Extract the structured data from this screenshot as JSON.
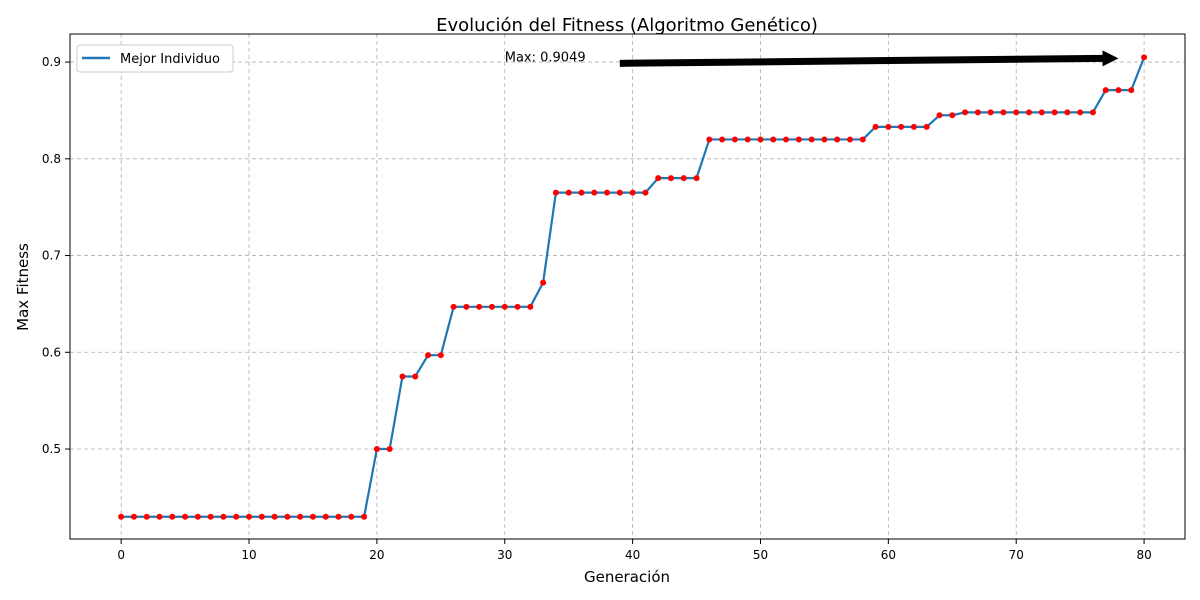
{
  "chart_data": {
    "type": "line",
    "title": "Evolución del Fitness (Algoritmo Genético)",
    "xlabel": "Generación",
    "ylabel": "Max Fitness",
    "xlim": [
      -4,
      83.2
    ],
    "ylim": [
      0.407,
      0.929
    ],
    "x_ticks": [
      0,
      10,
      20,
      30,
      40,
      50,
      60,
      70,
      80
    ],
    "y_ticks": [
      0.5,
      0.6,
      0.7,
      0.8,
      0.9
    ],
    "x_tick_labels": [
      "0",
      "10",
      "20",
      "30",
      "40",
      "50",
      "60",
      "70",
      "80"
    ],
    "y_tick_labels": [
      "0.5",
      "0.6",
      "0.7",
      "0.8",
      "0.9"
    ],
    "grid": true,
    "legend_position": "top-left",
    "series": [
      {
        "name": "Mejor Individuo",
        "color": "#1f77b4",
        "marker_color": "#ff0000",
        "x": [
          0,
          1,
          2,
          3,
          4,
          5,
          6,
          7,
          8,
          9,
          10,
          11,
          12,
          13,
          14,
          15,
          16,
          17,
          18,
          19,
          20,
          21,
          22,
          23,
          24,
          25,
          26,
          27,
          28,
          29,
          30,
          31,
          32,
          33,
          34,
          35,
          36,
          37,
          38,
          39,
          40,
          41,
          42,
          43,
          44,
          45,
          46,
          47,
          48,
          49,
          50,
          51,
          52,
          53,
          54,
          55,
          56,
          57,
          58,
          59,
          60,
          61,
          62,
          63,
          64,
          65,
          66,
          67,
          68,
          69,
          70,
          71,
          72,
          73,
          74,
          75,
          76,
          77,
          78,
          79,
          80
        ],
        "values": [
          0.43,
          0.43,
          0.43,
          0.43,
          0.43,
          0.43,
          0.43,
          0.43,
          0.43,
          0.43,
          0.43,
          0.43,
          0.43,
          0.43,
          0.43,
          0.43,
          0.43,
          0.43,
          0.43,
          0.43,
          0.5,
          0.5,
          0.575,
          0.575,
          0.597,
          0.597,
          0.647,
          0.647,
          0.647,
          0.647,
          0.647,
          0.647,
          0.647,
          0.672,
          0.765,
          0.765,
          0.765,
          0.765,
          0.765,
          0.765,
          0.765,
          0.765,
          0.78,
          0.78,
          0.78,
          0.78,
          0.82,
          0.82,
          0.82,
          0.82,
          0.82,
          0.82,
          0.82,
          0.82,
          0.82,
          0.82,
          0.82,
          0.82,
          0.82,
          0.833,
          0.833,
          0.833,
          0.833,
          0.833,
          0.845,
          0.845,
          0.848,
          0.848,
          0.848,
          0.848,
          0.848,
          0.848,
          0.848,
          0.848,
          0.848,
          0.848,
          0.848,
          0.871,
          0.871,
          0.871,
          0.9049
        ]
      }
    ],
    "annotation": {
      "text": "Max: 0.9049",
      "text_x": 30,
      "text_y": 0.9049,
      "arrow_from_x": 39,
      "arrow_from_y": 0.9049,
      "arrow_to_x": 78,
      "arrow_to_y": 0.9049
    }
  }
}
